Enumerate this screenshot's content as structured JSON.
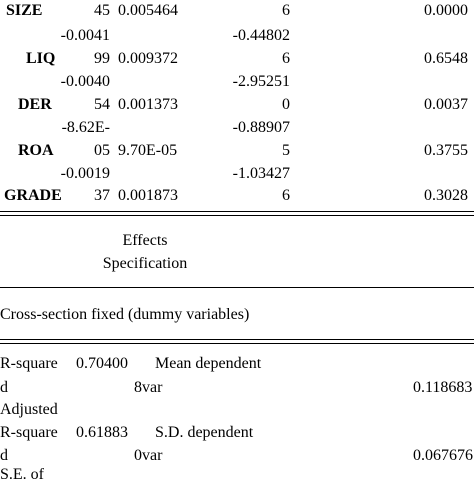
{
  "coefficients": {
    "rows": [
      {
        "variable": "SIZE",
        "c1_upper": "",
        "c1_lower": "45",
        "c2": "0.005464",
        "c3": "6",
        "c4": "0.0000"
      },
      {
        "variable": "LIQ",
        "c1_upper": "-0.0041",
        "c1_lower": "99",
        "c2": "0.009372",
        "c3_upper": "-0.44802",
        "c3": "6",
        "c4": "0.6548"
      },
      {
        "variable": "DER",
        "c1_upper": "-0.0040",
        "c1_lower": "54",
        "c2": "0.001373",
        "c3_upper": "-2.95251",
        "c3": "0",
        "c4": "0.0037"
      },
      {
        "variable": "ROA",
        "c1_upper": "-8.62E-",
        "c1_lower": "05",
        "c2": "9.70E-05",
        "c3_upper": "-0.88907",
        "c3": "5",
        "c4": "0.3755"
      },
      {
        "variable": "GRADE",
        "c1_upper": "-0.0019",
        "c1_lower": "37",
        "c2": "0.001873",
        "c3_upper": "-1.03427",
        "c3": "6",
        "c4": "0.3028"
      }
    ]
  },
  "effects": {
    "heading_line1": "Effects",
    "heading_line2": "Specification",
    "cross_section": "Cross-section fixed (dummy variables)"
  },
  "stats": {
    "r_square_label": "R-square",
    "r_square_value_a": "0.70400",
    "r_square_d": "d",
    "r_square_value_b": "8",
    "mean_dep_label_a": "Mean dependent",
    "mean_dep_label_b": "var",
    "mean_dep_value": "0.118683",
    "adjusted_label": "Adjusted",
    "adj_r_square_label": "R-square",
    "adj_r_square_value_a": "0.61883",
    "adj_r_square_d": "d",
    "adj_r_square_value_b": "0",
    "sd_dep_label_a": "S.D. dependent",
    "sd_dep_label_b": "var",
    "sd_dep_value": "0.067676",
    "se_partial": "S.E. of"
  }
}
